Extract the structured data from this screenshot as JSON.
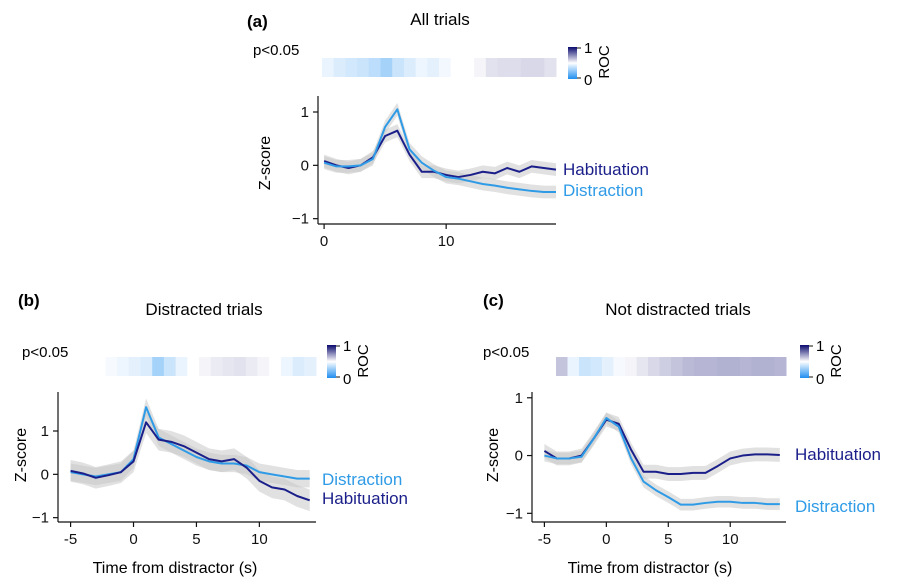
{
  "colors": {
    "habituation": "#1b1f8a",
    "distraction": "#2f9be6",
    "band": "#c8c8c8",
    "axis": "#111111",
    "roc_high": "#0a0a6e",
    "roc_mid": "#ffffff",
    "roc_low": "#1f8ef0"
  },
  "chart_data": [
    {
      "type": "line",
      "panel_letter": "(a)",
      "title": "All trials",
      "significance_label": "p<0.05",
      "colorbar": {
        "label": "ROC",
        "ticks": [
          "1",
          "0"
        ],
        "min": 0,
        "max": 1
      },
      "ylabel": "Z-score",
      "xlabel": "",
      "xlim": [
        -0.5,
        19
      ],
      "ylim": [
        -1.1,
        1.3
      ],
      "xticks": [
        "0",
        "10"
      ],
      "yticks": [
        "1",
        "0",
        "−1"
      ],
      "roc_strip": [
        0.45,
        0.42,
        0.4,
        0.38,
        0.35,
        0.3,
        0.38,
        0.42,
        0.46,
        0.44,
        0.47,
        0.5,
        0.5,
        0.52,
        0.56,
        0.57,
        0.57,
        0.58,
        0.58,
        0.56
      ],
      "series": [
        {
          "name": "Habituation",
          "x": [
            0,
            1,
            2,
            3,
            4,
            5,
            6,
            7,
            8,
            9,
            10,
            11,
            12,
            13,
            14,
            15,
            16,
            17,
            18,
            19
          ],
          "y": [
            0.08,
            0.0,
            -0.05,
            0.0,
            0.15,
            0.55,
            0.65,
            0.2,
            -0.12,
            -0.12,
            -0.18,
            -0.22,
            -0.18,
            -0.12,
            -0.15,
            -0.05,
            -0.12,
            -0.02,
            -0.05,
            -0.08
          ],
          "err": 0.12
        },
        {
          "name": "Distraction",
          "x": [
            0,
            1,
            2,
            3,
            4,
            5,
            6,
            7,
            8,
            9,
            10,
            11,
            12,
            13,
            14,
            15,
            16,
            17,
            18,
            19
          ],
          "y": [
            0.05,
            -0.02,
            -0.02,
            0.0,
            0.12,
            0.72,
            1.05,
            0.3,
            0.05,
            -0.1,
            -0.22,
            -0.25,
            -0.3,
            -0.35,
            -0.38,
            -0.42,
            -0.45,
            -0.48,
            -0.5,
            -0.5
          ],
          "err": 0.12
        }
      ]
    },
    {
      "type": "line",
      "panel_letter": "(b)",
      "title": "Distracted trials",
      "significance_label": "p<0.05",
      "colorbar": {
        "label": "ROC",
        "ticks": [
          "1",
          "0"
        ],
        "min": 0,
        "max": 1
      },
      "ylabel": "Z-score",
      "xlabel": "Time from distractor (s)",
      "xlim": [
        -6,
        14.5
      ],
      "ylim": [
        -1.1,
        1.9
      ],
      "xticks": [
        "-5",
        "0",
        "5",
        "10"
      ],
      "yticks": [
        "1",
        "0",
        "−1"
      ],
      "roc_strip": [
        0.5,
        0.5,
        0.48,
        0.46,
        0.44,
        0.42,
        0.3,
        0.38,
        0.45,
        0.5,
        0.52,
        0.54,
        0.55,
        0.56,
        0.54,
        0.52,
        0.5,
        0.46,
        0.42,
        0.44
      ],
      "series": [
        {
          "name": "Distraction",
          "x": [
            -5,
            -4,
            -3,
            -2,
            -1,
            0,
            1,
            2,
            3,
            4,
            5,
            6,
            7,
            8,
            9,
            10,
            11,
            12,
            13,
            14
          ],
          "y": [
            0.05,
            0.0,
            -0.05,
            0.0,
            0.05,
            0.35,
            1.55,
            0.85,
            0.7,
            0.55,
            0.4,
            0.3,
            0.25,
            0.25,
            0.2,
            0.05,
            0.0,
            -0.05,
            -0.1,
            -0.1
          ],
          "err": 0.2
        },
        {
          "name": "Habituation",
          "x": [
            -5,
            -4,
            -3,
            -2,
            -1,
            0,
            1,
            2,
            3,
            4,
            5,
            6,
            7,
            8,
            9,
            10,
            11,
            12,
            13,
            14
          ],
          "y": [
            0.08,
            0.02,
            -0.08,
            -0.02,
            0.05,
            0.3,
            1.2,
            0.8,
            0.75,
            0.65,
            0.5,
            0.35,
            0.3,
            0.35,
            0.15,
            -0.15,
            -0.3,
            -0.35,
            -0.5,
            -0.6
          ],
          "err": 0.25
        }
      ]
    },
    {
      "type": "line",
      "panel_letter": "(c)",
      "title": "Not distracted trials",
      "significance_label": "p<0.05",
      "colorbar": {
        "label": "ROC",
        "ticks": [
          "1",
          "0"
        ],
        "min": 0,
        "max": 1
      },
      "ylabel": "Z-score",
      "xlabel": "Time from distractor (s)",
      "xlim": [
        -6,
        14.5
      ],
      "ylim": [
        -1.15,
        1.1
      ],
      "xticks": [
        "-5",
        "0",
        "5",
        "10"
      ],
      "yticks": [
        "1",
        "0",
        "−1"
      ],
      "roc_strip": [
        0.62,
        0.45,
        0.38,
        0.4,
        0.44,
        0.48,
        0.52,
        0.55,
        0.58,
        0.6,
        0.62,
        0.64,
        0.65,
        0.65,
        0.66,
        0.66,
        0.65,
        0.66,
        0.66,
        0.65
      ],
      "series": [
        {
          "name": "Habituation",
          "x": [
            -5,
            -4,
            -3,
            -2,
            -1,
            0,
            1,
            2,
            3,
            4,
            5,
            6,
            7,
            8,
            9,
            10,
            11,
            12,
            13,
            14
          ],
          "y": [
            0.08,
            -0.05,
            -0.05,
            0.0,
            0.3,
            0.62,
            0.55,
            0.1,
            -0.28,
            -0.28,
            -0.32,
            -0.32,
            -0.3,
            -0.3,
            -0.18,
            -0.05,
            0.0,
            0.02,
            0.02,
            0.01
          ],
          "err": 0.12
        },
        {
          "name": "Distraction",
          "x": [
            -5,
            -4,
            -3,
            -2,
            -1,
            0,
            1,
            2,
            3,
            4,
            5,
            6,
            7,
            8,
            9,
            10,
            11,
            12,
            13,
            14
          ],
          "y": [
            0.0,
            -0.05,
            -0.05,
            -0.02,
            0.3,
            0.65,
            0.5,
            -0.05,
            -0.45,
            -0.6,
            -0.72,
            -0.85,
            -0.85,
            -0.82,
            -0.8,
            -0.8,
            -0.82,
            -0.82,
            -0.84,
            -0.84
          ],
          "err": 0.1
        }
      ]
    }
  ]
}
